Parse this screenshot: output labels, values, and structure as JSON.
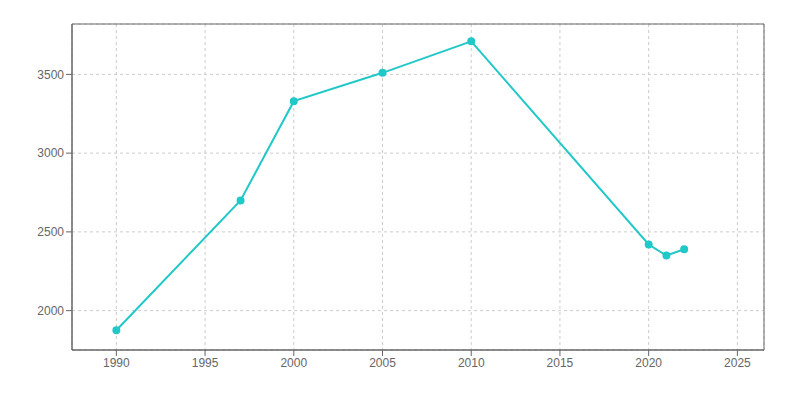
{
  "chart_data": {
    "type": "line",
    "x": [
      1990,
      1997,
      2000,
      2005,
      2010,
      2020,
      2021,
      2022
    ],
    "values": [
      1875,
      2700,
      3330,
      3510,
      3710,
      2420,
      2350,
      2390
    ],
    "color": "#22c8c8",
    "marker": "circle",
    "xlim": [
      1987.5,
      2026.5
    ],
    "ylim": [
      1750,
      3820
    ],
    "xticks": [
      1990,
      1995,
      2000,
      2005,
      2010,
      2015,
      2020,
      2025
    ],
    "yticks": [
      2000,
      2500,
      3000,
      3500
    ],
    "grid": true
  }
}
